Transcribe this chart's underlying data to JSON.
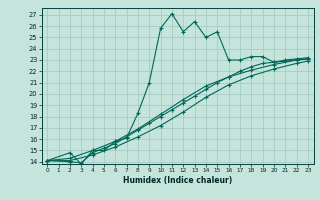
{
  "title": "",
  "xlabel": "Humidex (Indice chaleur)",
  "ylabel": "",
  "bg_color": "#c4e4dc",
  "grid_color": "#a0c8c0",
  "line_color": "#006858",
  "xlim": [
    -0.5,
    23.5
  ],
  "ylim": [
    13.8,
    27.6
  ],
  "xticks": [
    0,
    1,
    2,
    3,
    4,
    5,
    6,
    7,
    8,
    9,
    10,
    11,
    12,
    13,
    14,
    15,
    16,
    17,
    18,
    19,
    20,
    21,
    22,
    23
  ],
  "yticks": [
    14,
    15,
    16,
    17,
    18,
    19,
    20,
    21,
    22,
    23,
    24,
    25,
    26,
    27
  ],
  "line1_x": [
    0,
    2,
    3,
    4,
    5,
    6,
    7,
    8,
    9,
    10,
    11,
    12,
    13,
    14,
    15,
    16,
    17,
    18,
    19,
    20,
    21,
    22,
    23
  ],
  "line1_y": [
    14.1,
    14.8,
    13.8,
    15.0,
    15.0,
    15.8,
    16.1,
    18.3,
    21.0,
    25.8,
    27.1,
    25.5,
    26.4,
    25.0,
    25.5,
    23.0,
    23.0,
    23.3,
    23.3,
    22.8,
    23.0,
    23.1,
    23.2
  ],
  "line2_x": [
    0,
    2,
    3,
    4,
    5,
    6,
    7,
    8,
    9,
    10,
    11,
    12,
    13,
    14,
    15,
    16,
    17,
    18,
    19,
    20,
    21,
    22,
    23
  ],
  "line2_y": [
    14.1,
    14.0,
    13.9,
    14.8,
    15.2,
    15.6,
    16.2,
    16.8,
    17.4,
    18.0,
    18.6,
    19.2,
    19.8,
    20.4,
    21.0,
    21.5,
    22.0,
    22.4,
    22.7,
    22.8,
    22.9,
    23.0,
    23.1
  ],
  "line3_x": [
    0,
    2,
    4,
    6,
    8,
    10,
    12,
    14,
    16,
    18,
    20,
    22,
    23
  ],
  "line3_y": [
    14.1,
    14.3,
    15.0,
    15.8,
    16.9,
    18.2,
    19.5,
    20.7,
    21.5,
    22.1,
    22.6,
    23.0,
    23.1
  ],
  "line4_x": [
    0,
    2,
    4,
    6,
    8,
    10,
    12,
    14,
    16,
    18,
    20,
    22,
    23
  ],
  "line4_y": [
    14.1,
    14.1,
    14.6,
    15.3,
    16.2,
    17.2,
    18.4,
    19.7,
    20.8,
    21.6,
    22.2,
    22.7,
    22.9
  ]
}
